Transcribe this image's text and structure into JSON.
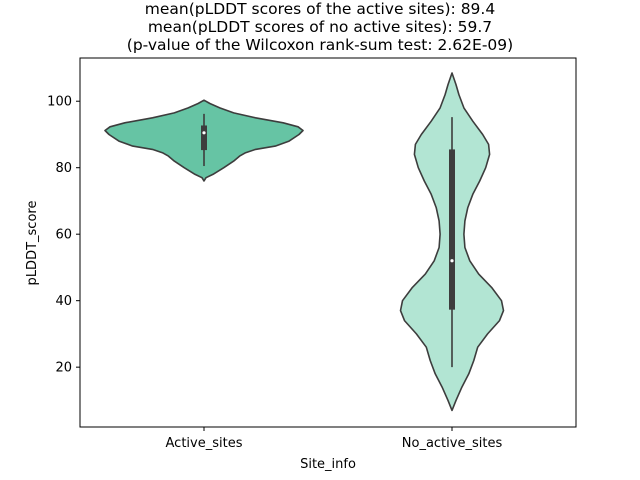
{
  "chart_data": {
    "type": "violin",
    "title_lines": [
      "mean(pLDDT scores of the active sites): 89.4",
      "mean(pLDDT scores of no active sites): 59.7",
      "(p-value of the Wilcoxon rank-sum test: 2.62E-09)"
    ],
    "xlabel": "Site_info",
    "ylabel": "pLDDT_score",
    "ylim": [
      2,
      113
    ],
    "yticks": [
      20,
      40,
      60,
      80,
      100
    ],
    "grid": false,
    "categories": [
      "Active_sites",
      "No_active_sites"
    ],
    "series": [
      {
        "category": "Active_sites",
        "color": "#66c4a4",
        "box": {
          "whisker_low": 80.5,
          "q1": 85.3,
          "median": 90.5,
          "q3": 92.7,
          "whisker_high": 96.2
        },
        "density": [
          [
            76,
            0.0
          ],
          [
            77,
            0.02
          ],
          [
            78,
            0.09
          ],
          [
            80,
            0.2
          ],
          [
            82,
            0.3
          ],
          [
            83.5,
            0.36
          ],
          [
            84.5,
            0.42
          ],
          [
            85.5,
            0.52
          ],
          [
            86.5,
            0.72
          ],
          [
            88,
            0.86
          ],
          [
            90,
            0.96
          ],
          [
            91.2,
            1.0
          ],
          [
            92.3,
            0.95
          ],
          [
            93.5,
            0.8
          ],
          [
            95,
            0.52
          ],
          [
            96.5,
            0.3
          ],
          [
            98,
            0.16
          ],
          [
            99.3,
            0.06
          ],
          [
            100.3,
            0.0
          ]
        ]
      },
      {
        "category": "No_active_sites",
        "color": "#b2e5d3",
        "box": {
          "whisker_low": 20,
          "q1": 37.3,
          "median": 52,
          "q3": 85.5,
          "whisker_high": 95.2
        },
        "density": [
          [
            7,
            0.0
          ],
          [
            10,
            0.04
          ],
          [
            14,
            0.1
          ],
          [
            18,
            0.17
          ],
          [
            22,
            0.22
          ],
          [
            26,
            0.26
          ],
          [
            30,
            0.36
          ],
          [
            34,
            0.48
          ],
          [
            37,
            0.52
          ],
          [
            40,
            0.5
          ],
          [
            44,
            0.4
          ],
          [
            48,
            0.27
          ],
          [
            52,
            0.18
          ],
          [
            56,
            0.13
          ],
          [
            60,
            0.12
          ],
          [
            64,
            0.13
          ],
          [
            68,
            0.16
          ],
          [
            72,
            0.21
          ],
          [
            76,
            0.28
          ],
          [
            80,
            0.34
          ],
          [
            84,
            0.38
          ],
          [
            87,
            0.37
          ],
          [
            90,
            0.31
          ],
          [
            94,
            0.21
          ],
          [
            98,
            0.12
          ],
          [
            102,
            0.07
          ],
          [
            105,
            0.04
          ],
          [
            108.5,
            0.0
          ]
        ]
      }
    ]
  },
  "colors": {
    "outline": "#3d3d3d",
    "axes": "#000000",
    "background": "#ffffff"
  }
}
